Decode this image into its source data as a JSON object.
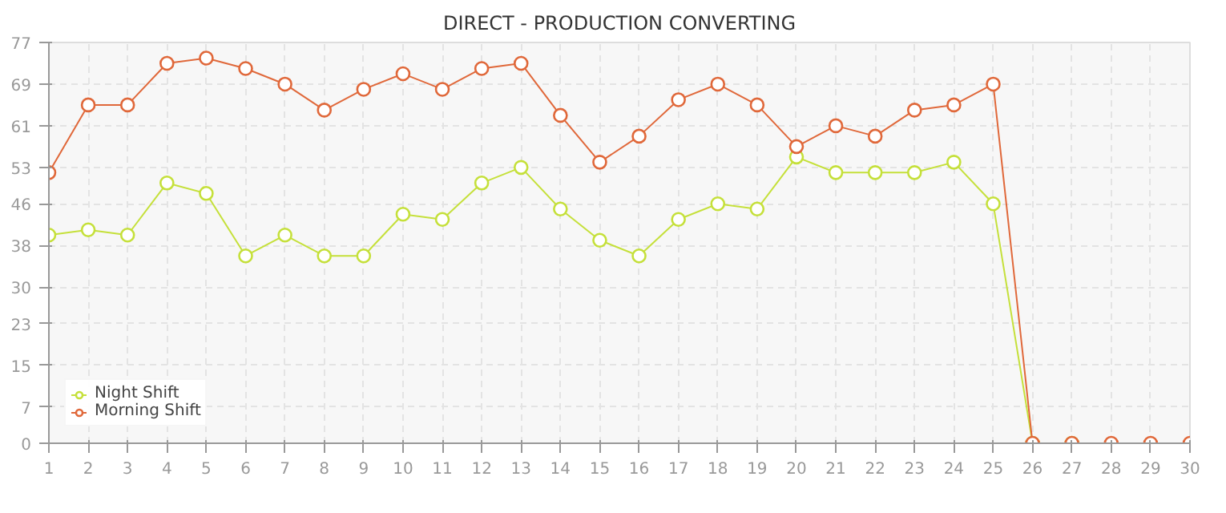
{
  "chart_data": {
    "type": "line",
    "title": "DIRECT - PRODUCTION CONVERTING",
    "x": [
      1,
      2,
      3,
      4,
      5,
      6,
      7,
      8,
      9,
      10,
      11,
      12,
      13,
      14,
      15,
      16,
      17,
      18,
      19,
      20,
      21,
      22,
      23,
      24,
      25,
      26,
      27,
      28,
      29,
      30
    ],
    "series": [
      {
        "name": "Night Shift",
        "color": "#c5e03a",
        "values": [
          40,
          41,
          40,
          50,
          48,
          36,
          40,
          36,
          36,
          44,
          43,
          50,
          53,
          45,
          39,
          36,
          43,
          46,
          45,
          55,
          52,
          52,
          52,
          54,
          46,
          0,
          0,
          null,
          null,
          null
        ]
      },
      {
        "name": "Morning Shift",
        "color": "#e0683a",
        "values": [
          52,
          65,
          65,
          73,
          74,
          72,
          69,
          64,
          68,
          71,
          68,
          72,
          73,
          63,
          54,
          59,
          66,
          69,
          65,
          57,
          61,
          59,
          64,
          65,
          69,
          0,
          0,
          0,
          0,
          0
        ]
      }
    ],
    "xlim": [
      1,
      30
    ],
    "xticks": [
      1,
      2,
      3,
      4,
      5,
      6,
      7,
      8,
      9,
      10,
      11,
      12,
      13,
      14,
      15,
      16,
      17,
      18,
      19,
      20,
      21,
      22,
      23,
      24,
      25,
      26,
      27,
      28,
      29,
      30
    ],
    "ylim": [
      0,
      77
    ],
    "yticks": [
      0,
      7,
      15,
      23,
      30,
      38,
      46,
      53,
      61,
      69,
      77
    ],
    "grid": true,
    "legend": "bottom left",
    "marker": "circle",
    "line_style": "solid"
  }
}
